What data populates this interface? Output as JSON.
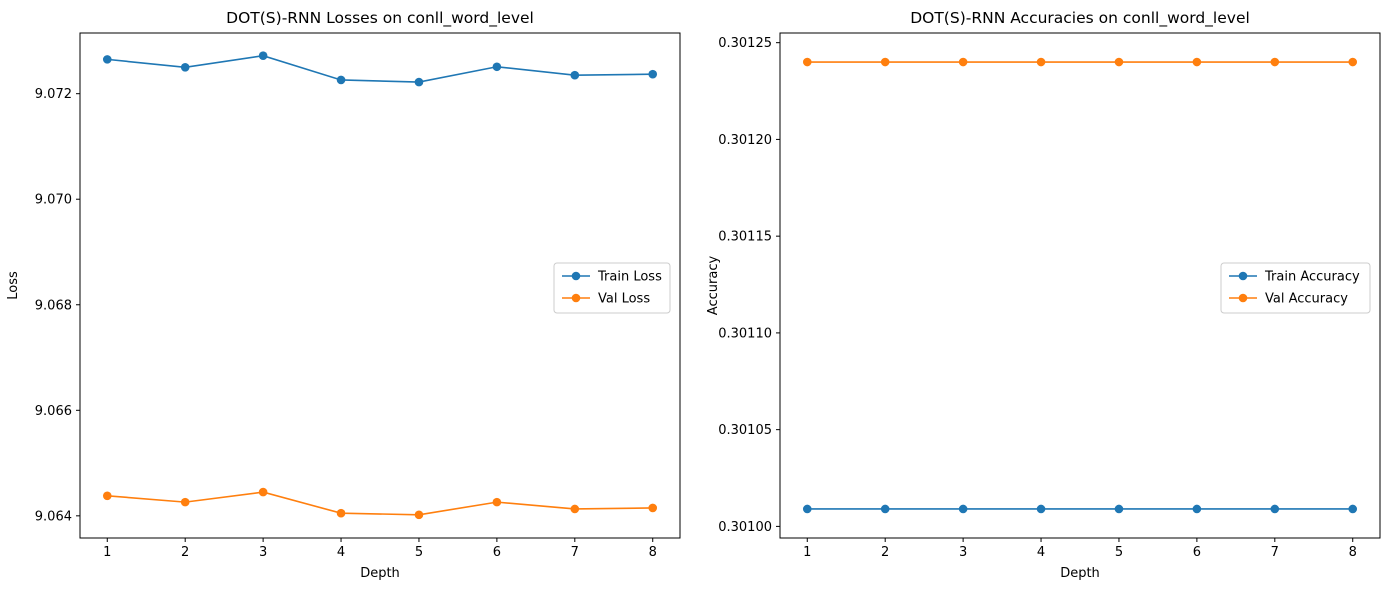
{
  "chart_data": [
    {
      "type": "line",
      "title": "DOT(S)-RNN Losses on conll_word_level",
      "xlabel": "Depth",
      "ylabel": "Loss",
      "x": [
        1,
        2,
        3,
        4,
        5,
        6,
        7,
        8
      ],
      "xticks": [
        "1",
        "2",
        "3",
        "4",
        "5",
        "6",
        "7",
        "8"
      ],
      "xlim": [
        0.65,
        8.35
      ],
      "ylim": [
        9.06358,
        9.07315
      ],
      "yticks": [
        "9.064",
        "9.066",
        "9.068",
        "9.070",
        "9.072"
      ],
      "ytick_values": [
        9.064,
        9.066,
        9.068,
        9.07,
        9.072
      ],
      "grid": false,
      "legend_position": "center-right",
      "series": [
        {
          "name": "Train Loss",
          "color": "#1f77b4",
          "marker": "circle",
          "values": [
            9.07265,
            9.0725,
            9.07272,
            9.07226,
            9.07222,
            9.07251,
            9.07235,
            9.07237
          ]
        },
        {
          "name": "Val Loss",
          "color": "#ff7f0e",
          "marker": "circle",
          "values": [
            9.06438,
            9.06426,
            9.06445,
            9.06405,
            9.06402,
            9.06426,
            9.06413,
            9.06415
          ]
        }
      ]
    },
    {
      "type": "line",
      "title": "DOT(S)-RNN Accuracies on conll_word_level",
      "xlabel": "Depth",
      "ylabel": "Accuracy",
      "x": [
        1,
        2,
        3,
        4,
        5,
        6,
        7,
        8
      ],
      "xticks": [
        "1",
        "2",
        "3",
        "4",
        "5",
        "6",
        "7",
        "8"
      ],
      "xlim": [
        0.65,
        8.35
      ],
      "ylim": [
        0.300994,
        0.301255
      ],
      "yticks": [
        "0.30100",
        "0.30105",
        "0.30110",
        "0.30115",
        "0.30120",
        "0.30125"
      ],
      "ytick_values": [
        0.301,
        0.30105,
        0.3011,
        0.30115,
        0.3012,
        0.30125
      ],
      "grid": false,
      "legend_position": "center-right",
      "series": [
        {
          "name": "Train Accuracy",
          "color": "#1f77b4",
          "marker": "circle",
          "values": [
            0.301009,
            0.301009,
            0.301009,
            0.301009,
            0.301009,
            0.301009,
            0.301009,
            0.301009
          ]
        },
        {
          "name": "Val Accuracy",
          "color": "#ff7f0e",
          "marker": "circle",
          "values": [
            0.30124,
            0.30124,
            0.30124,
            0.30124,
            0.30124,
            0.30124,
            0.30124,
            0.30124
          ]
        }
      ]
    }
  ]
}
